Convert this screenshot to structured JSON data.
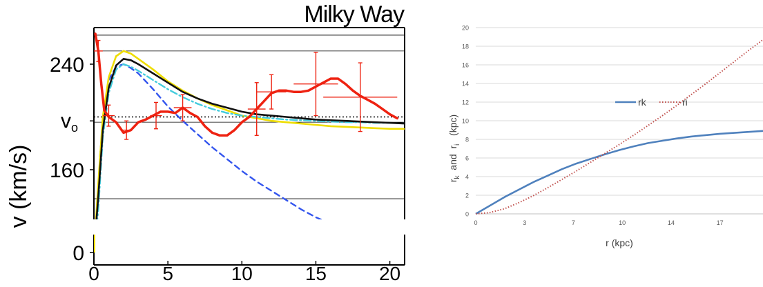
{
  "chart_data": [
    {
      "type": "line",
      "title": "Milky Way",
      "xlabel": "",
      "ylabel": "v (km/s)",
      "xlim": [
        0,
        21
      ],
      "ylim": [
        0,
        290
      ],
      "x_ticks": [
        0,
        5,
        10,
        15,
        20
      ],
      "y_tick_labels": [
        {
          "label": "240",
          "value": 240
        },
        {
          "label": "vo",
          "value": 197
        },
        {
          "label": "160",
          "value": 160
        },
        {
          "label": "0",
          "value": 0
        }
      ],
      "reference_lines": [
        {
          "value": 262,
          "style": "solid"
        },
        {
          "value": 250,
          "style": "solid"
        },
        {
          "value": 200,
          "style": "dotted"
        },
        {
          "value": 196,
          "style": "solid"
        },
        {
          "value": 138,
          "style": "solid"
        }
      ],
      "axis_break": true,
      "grid": false,
      "legend": "none",
      "colors": {
        "observed": "#ee2211",
        "total": "#111111",
        "yellow": "#eedd00",
        "cyan": "#44ccdd",
        "dashed": "#3355ee"
      },
      "series": [
        {
          "key": "observed",
          "style": "solid",
          "x": [
            0.1,
            0.3,
            0.5,
            0.7,
            1.0,
            1.5,
            2.0,
            2.5,
            3.0,
            3.5,
            4.0,
            4.5,
            5.0,
            5.5,
            6.0,
            6.5,
            7.0,
            7.5,
            8.0,
            8.5,
            9.0,
            9.5,
            10.0,
            10.5,
            11.0,
            11.5,
            12.0,
            12.5,
            13.0,
            13.5,
            14.0,
            14.5,
            15.0,
            15.5,
            16.0,
            16.5,
            17.0,
            17.5,
            18.0,
            18.5,
            19.0,
            19.5,
            20.0,
            20.5
          ],
          "y": [
            263,
            250,
            225,
            205,
            200,
            196,
            188,
            190,
            196,
            198,
            201,
            204,
            204,
            203,
            207,
            203,
            200,
            193,
            188,
            186,
            186,
            190,
            196,
            200,
            206,
            212,
            218,
            220,
            220,
            219,
            219,
            220,
            223,
            226,
            229,
            229,
            225,
            220,
            216,
            213,
            210,
            206,
            202,
            199
          ]
        },
        {
          "key": "total",
          "style": "solid",
          "x": [
            0,
            0.3,
            0.6,
            1.0,
            1.5,
            2.0,
            2.5,
            3.0,
            4.0,
            5.0,
            6.0,
            7.0,
            8.0,
            9.0,
            10.0,
            11.0,
            12.0,
            13.0,
            14.0,
            15.0,
            16.0,
            17.0,
            18.0,
            19.0,
            20.0,
            21.0
          ],
          "y": [
            0,
            140,
            190,
            222,
            239,
            244,
            243,
            240,
            233,
            226,
            219,
            214,
            210,
            207,
            204,
            202,
            201,
            200,
            199,
            198,
            197.5,
            197,
            196.5,
            196,
            195.5,
            195
          ]
        },
        {
          "key": "yellow",
          "style": "solid",
          "x": [
            0,
            0.3,
            0.6,
            1.0,
            1.5,
            2.0,
            2.5,
            3.0,
            4.0,
            5.0,
            6.0,
            7.0,
            8.0,
            9.0,
            10.0,
            11.0,
            12.0,
            13.0,
            14.0,
            15.0,
            16.0,
            17.0,
            18.0,
            19.0,
            20.0,
            21.0
          ],
          "y": [
            0,
            150,
            200,
            230,
            246,
            250,
            248,
            244,
            236,
            227,
            220,
            214,
            209,
            205,
            201,
            199,
            197,
            196,
            195,
            194,
            193,
            192.5,
            192,
            191.5,
            191,
            191
          ]
        },
        {
          "key": "cyan",
          "style": "dashdot",
          "x": [
            0,
            0.3,
            0.6,
            1.0,
            1.5,
            2.0,
            2.5,
            3.0,
            4.0,
            5.0,
            6.0,
            7.0,
            8.0,
            9.0,
            10.0,
            11.0,
            12.0,
            13.0,
            14.0,
            15.0,
            16.0,
            17.0,
            18.0,
            19.0,
            20.0,
            21.0
          ],
          "y": [
            0,
            130,
            185,
            218,
            236,
            240,
            238,
            235,
            228,
            221,
            215,
            210,
            206,
            203,
            201,
            200,
            199,
            198,
            197.5,
            197,
            196.5,
            196,
            196,
            195.5,
            195.5,
            195
          ]
        },
        {
          "key": "dashed",
          "style": "dashed",
          "x": [
            0.4,
            0.7,
            1.0,
            1.5,
            2.0,
            2.5,
            3.0,
            4.0,
            5.0,
            6.0,
            7.0,
            8.0,
            9.0,
            10.0,
            11.0,
            12.0,
            13.0,
            14.0,
            15.0,
            16.0,
            17.0,
            18.0,
            19.0,
            20.0,
            21.0
          ],
          "y": [
            170,
            205,
            228,
            238,
            240,
            237,
            233,
            221,
            208,
            197,
            187,
            177,
            168,
            159,
            151,
            144,
            137,
            130,
            124,
            119,
            114,
            110,
            106,
            103,
            100
          ]
        }
      ],
      "error_bars": [
        {
          "x": 0.3,
          "y": 250,
          "xerr": 0.3,
          "yerr": 8
        },
        {
          "x": 1.0,
          "y": 201,
          "xerr": 0.4,
          "yerr": 8
        },
        {
          "x": 2.2,
          "y": 190,
          "xerr": 0.3,
          "yerr": 7
        },
        {
          "x": 4.2,
          "y": 201,
          "xerr": 0.4,
          "yerr": 10
        },
        {
          "x": 6.0,
          "y": 207,
          "xerr": 0.6,
          "yerr": 10
        },
        {
          "x": 11.0,
          "y": 206,
          "xerr": 0.6,
          "yerr": 20
        },
        {
          "x": 12.0,
          "y": 219,
          "xerr": 1.0,
          "yerr": 13
        },
        {
          "x": 15.0,
          "y": 225,
          "xerr": 1.5,
          "yerr": 24
        },
        {
          "x": 18.0,
          "y": 215,
          "xerr": 2.5,
          "yerr": 26
        }
      ]
    },
    {
      "type": "line",
      "title": "",
      "xlabel": "r  (kpc)",
      "ylabel": "rk  and  ri   (kpc)",
      "xlim": [
        0,
        20
      ],
      "ylim": [
        0,
        20
      ],
      "x_tick_labels": [
        "0",
        "3",
        "7",
        "10",
        "14",
        "17"
      ],
      "x_tick_positions": [
        0,
        3.4,
        6.8,
        10.2,
        13.6,
        17.0
      ],
      "y_ticks": [
        0,
        2,
        4,
        6,
        8,
        10,
        12,
        14,
        16,
        18,
        20
      ],
      "grid": true,
      "legend": "center",
      "series": [
        {
          "name": "rk",
          "color": "#4f81bd",
          "style": "solid",
          "x": [
            0,
            1,
            2,
            3,
            4,
            5,
            6,
            7,
            8,
            9,
            10,
            11,
            12,
            13,
            14,
            15,
            16,
            17,
            18,
            19,
            20
          ],
          "y": [
            0,
            0.9,
            1.8,
            2.6,
            3.4,
            4.1,
            4.8,
            5.4,
            5.9,
            6.4,
            6.85,
            7.25,
            7.6,
            7.85,
            8.1,
            8.3,
            8.45,
            8.6,
            8.7,
            8.8,
            8.9
          ]
        },
        {
          "name": "ri",
          "color": "#c0504d",
          "style": "dotted",
          "x": [
            0,
            1,
            2,
            3,
            4,
            5,
            6,
            7,
            8,
            9,
            10,
            11,
            12,
            13,
            14,
            15,
            16,
            17,
            18,
            19,
            20
          ],
          "y": [
            0,
            0.15,
            0.55,
            1.2,
            1.95,
            2.8,
            3.7,
            4.6,
            5.55,
            6.5,
            7.45,
            8.45,
            9.5,
            10.55,
            11.65,
            12.8,
            13.95,
            15.15,
            16.35,
            17.55,
            18.7
          ]
        }
      ]
    }
  ]
}
